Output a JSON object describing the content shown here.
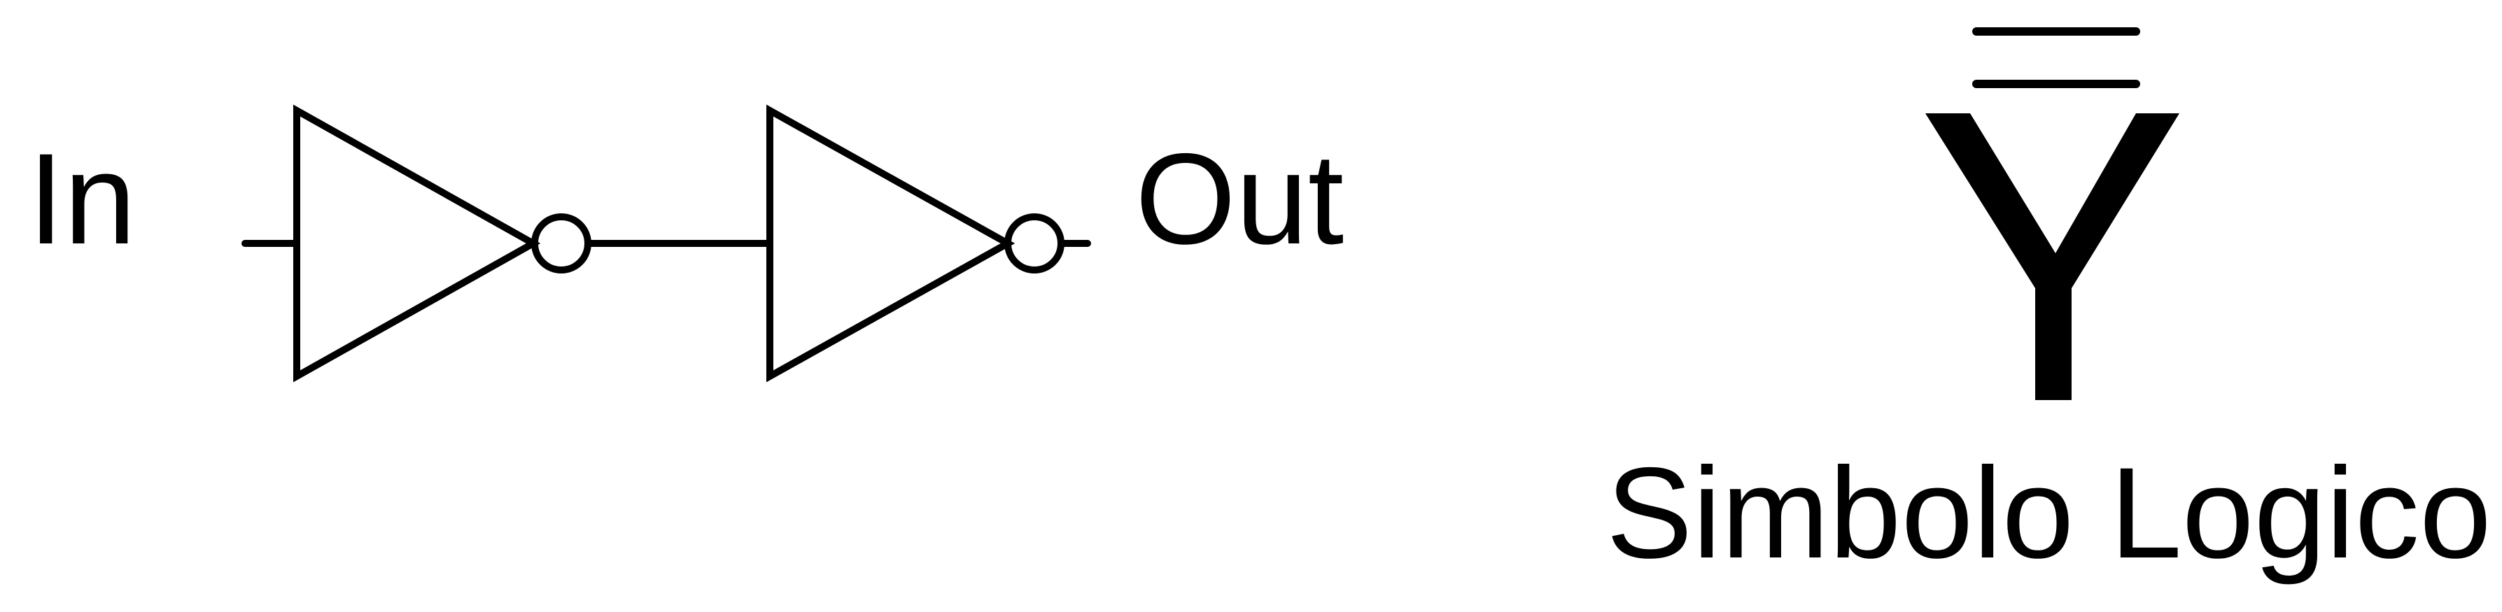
{
  "labels": {
    "input": "In",
    "output": "Out",
    "symbol_caption": "Simbolo Logico"
  },
  "colors": {
    "background": "#ffffff",
    "stroke": "#000000"
  }
}
